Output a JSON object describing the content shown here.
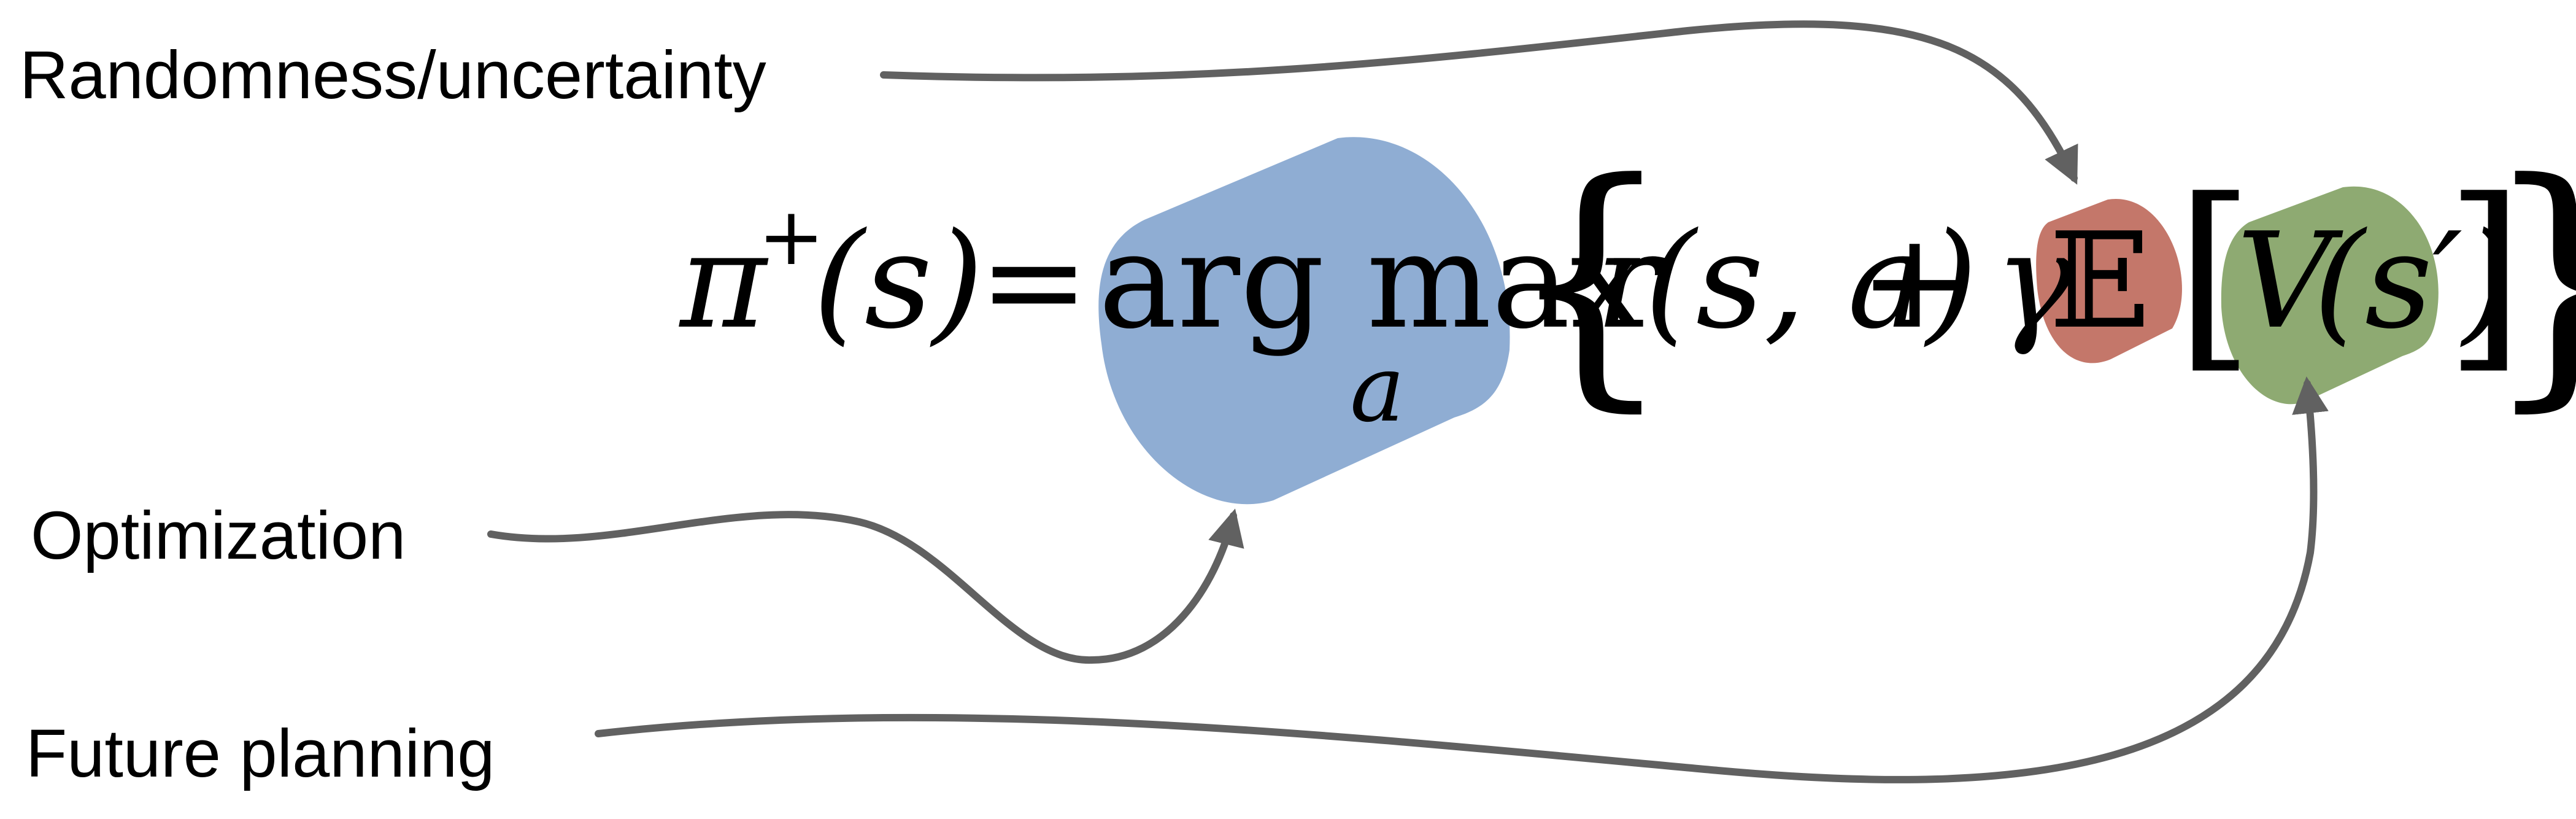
{
  "labels": {
    "randomness": "Randomness/uncertainty",
    "optimization": "Optimization",
    "future_planning": "Future planning"
  },
  "equation": {
    "lhs_pi": "π",
    "lhs_sup": "+",
    "lhs_args": "(s)",
    "equals": "=",
    "operator": "arg max",
    "operator_sub": "a",
    "open_brace": "{",
    "reward_r": "r",
    "reward_args": "(s, a)",
    "plus": "+",
    "gamma": "γ",
    "expectation": "𝔼",
    "open_bracket": "[",
    "value_v": "V",
    "value_args": "(s′)",
    "close_bracket": "]",
    "close_brace": "}"
  },
  "colors": {
    "optimization_blob": "#8fadd3",
    "randomness_blob": "#c4776a",
    "future_planning_blob": "#8eaa72",
    "arrow": "#616161"
  }
}
